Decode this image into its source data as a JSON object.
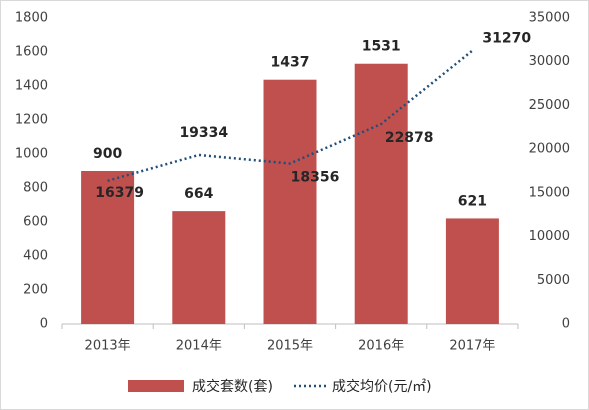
{
  "chart_data": {
    "type": "bar",
    "categories": [
      "2013年",
      "2014年",
      "2015年",
      "2016年",
      "2017年"
    ],
    "series": [
      {
        "name": "成交套数(套)",
        "type": "bar",
        "color": "#c0504d",
        "values": [
          900,
          664,
          1437,
          1531,
          621
        ]
      },
      {
        "name": "成交均价(元/㎡)",
        "type": "line",
        "axis": "y2",
        "color": "#1f4e79",
        "values": [
          16379,
          19334,
          18356,
          22878,
          31270
        ]
      }
    ],
    "ylim": [
      0,
      1800
    ],
    "yticks": [
      0,
      200,
      400,
      600,
      800,
      1000,
      1200,
      1400,
      1600,
      1800
    ],
    "y2lim": [
      0,
      35000
    ],
    "y2ticks": [
      0,
      5000,
      10000,
      15000,
      20000,
      25000,
      30000,
      35000
    ],
    "grid": false
  }
}
